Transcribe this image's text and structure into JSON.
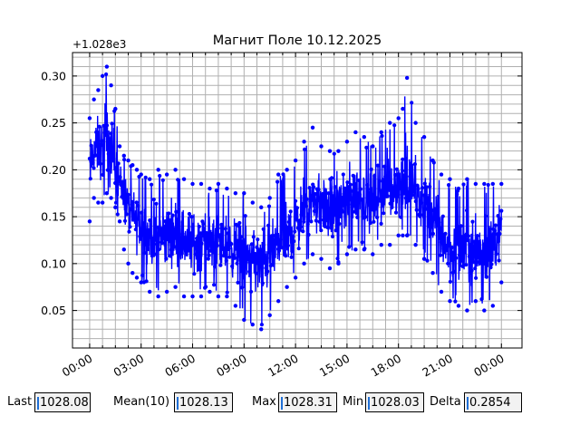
{
  "chart_data": {
    "type": "line",
    "title": "Магнит Поле 10.12.2025",
    "offset_label": "+1.028e3",
    "xlabel": "",
    "ylabel": "",
    "x_ticks": [
      "00:00",
      "03:00",
      "06:00",
      "09:00",
      "12:00",
      "15:00",
      "18:00",
      "21:00",
      "00:00"
    ],
    "x_tick_hours": [
      0,
      3,
      6,
      9,
      12,
      15,
      18,
      21,
      24
    ],
    "xlim_hours": [
      -1.0,
      25.2
    ],
    "y_ticks": [
      0.05,
      0.1,
      0.15,
      0.2,
      0.25,
      0.3
    ],
    "ylim": [
      0.01,
      0.325
    ],
    "grid": true,
    "series": [
      {
        "color": "#0000ff",
        "x_hours": [
          0.0,
          0.25,
          0.5,
          0.75,
          1.0,
          1.25,
          1.5,
          1.75,
          2.0,
          2.25,
          2.5,
          2.75,
          3.0,
          3.5,
          4.0,
          4.5,
          5.0,
          5.5,
          6.0,
          6.5,
          7.0,
          7.5,
          8.0,
          8.5,
          9.0,
          9.5,
          10.0,
          10.5,
          11.0,
          11.5,
          12.0,
          12.5,
          13.0,
          13.5,
          14.0,
          14.5,
          15.0,
          15.5,
          16.0,
          16.5,
          17.0,
          17.5,
          18.0,
          18.25,
          18.5,
          19.0,
          19.5,
          20.0,
          20.5,
          21.0,
          21.5,
          22.0,
          22.5,
          23.0,
          23.5,
          24.0
        ],
        "mean": [
          0.2,
          0.22,
          0.225,
          0.215,
          0.228,
          0.225,
          0.205,
          0.19,
          0.175,
          0.16,
          0.15,
          0.145,
          0.14,
          0.13,
          0.125,
          0.13,
          0.135,
          0.125,
          0.12,
          0.125,
          0.125,
          0.12,
          0.12,
          0.115,
          0.11,
          0.105,
          0.1,
          0.11,
          0.12,
          0.125,
          0.14,
          0.155,
          0.165,
          0.16,
          0.155,
          0.16,
          0.165,
          0.17,
          0.17,
          0.165,
          0.175,
          0.18,
          0.18,
          0.185,
          0.185,
          0.175,
          0.165,
          0.15,
          0.13,
          0.11,
          0.11,
          0.115,
          0.115,
          0.115,
          0.12,
          0.13
        ],
        "upper": [
          0.255,
          0.275,
          0.285,
          0.3,
          0.31,
          0.29,
          0.265,
          0.225,
          0.215,
          0.21,
          0.205,
          0.2,
          0.195,
          0.19,
          0.2,
          0.195,
          0.2,
          0.19,
          0.185,
          0.185,
          0.18,
          0.185,
          0.18,
          0.175,
          0.175,
          0.165,
          0.16,
          0.17,
          0.195,
          0.2,
          0.21,
          0.23,
          0.245,
          0.225,
          0.22,
          0.22,
          0.23,
          0.24,
          0.235,
          0.225,
          0.24,
          0.25,
          0.255,
          0.265,
          0.298,
          0.25,
          0.235,
          0.21,
          0.195,
          0.19,
          0.18,
          0.19,
          0.185,
          0.185,
          0.185,
          0.185
        ],
        "lower": [
          0.145,
          0.17,
          0.165,
          0.165,
          0.175,
          0.17,
          0.16,
          0.145,
          0.115,
          0.1,
          0.09,
          0.085,
          0.08,
          0.07,
          0.065,
          0.07,
          0.075,
          0.065,
          0.065,
          0.065,
          0.07,
          0.065,
          0.065,
          0.055,
          0.04,
          0.035,
          0.03,
          0.045,
          0.06,
          0.075,
          0.085,
          0.1,
          0.11,
          0.105,
          0.095,
          0.1,
          0.11,
          0.115,
          0.115,
          0.11,
          0.12,
          0.12,
          0.13,
          0.13,
          0.13,
          0.12,
          0.105,
          0.09,
          0.07,
          0.06,
          0.055,
          0.05,
          0.06,
          0.05,
          0.055,
          0.08
        ]
      }
    ]
  },
  "stats": {
    "last_label": "Last",
    "last_value": "1028.08",
    "mean_label": "Mean(10)",
    "mean_value": "1028.13",
    "max_label": "Max",
    "max_value": "1028.31",
    "min_label": "Min",
    "min_value": "1028.03",
    "delta_label": "Delta",
    "delta_value": "0.2854"
  }
}
